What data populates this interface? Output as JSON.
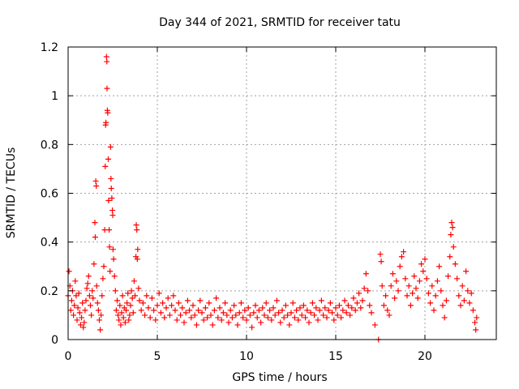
{
  "chart_data": {
    "type": "scatter",
    "title": "Day 344 of 2021, SRMTID for receiver tatu",
    "xlabel": "GPS time / hours",
    "ylabel": "SRMTID / TECUs",
    "xlim": [
      0,
      24
    ],
    "ylim": [
      0,
      1.2
    ],
    "xticks": [
      0,
      5,
      10,
      15,
      20
    ],
    "xtick_labels": [
      "0",
      "5",
      "10",
      "15",
      "20"
    ],
    "yticks": [
      0,
      0.2,
      0.4,
      0.6,
      0.8,
      1.0,
      1.2
    ],
    "ytick_labels": [
      "0",
      "0.2",
      "0.4",
      "0.6",
      "0.8",
      "1",
      "1.2"
    ],
    "grid": true,
    "marker": "plus",
    "series_color": "#ff0000",
    "series": [
      {
        "name": "SRMTID",
        "points": [
          [
            0.0,
            0.18
          ],
          [
            0.05,
            0.28
          ],
          [
            0.1,
            0.22
          ],
          [
            0.15,
            0.12
          ],
          [
            0.2,
            0.16
          ],
          [
            0.25,
            0.2
          ],
          [
            0.3,
            0.1
          ],
          [
            0.35,
            0.14
          ],
          [
            0.4,
            0.24
          ],
          [
            0.45,
            0.18
          ],
          [
            0.5,
            0.08
          ],
          [
            0.55,
            0.13
          ],
          [
            0.6,
            0.19
          ],
          [
            0.65,
            0.11
          ],
          [
            0.7,
            0.06
          ],
          [
            0.75,
            0.09
          ],
          [
            0.8,
            0.15
          ],
          [
            0.85,
            0.05
          ],
          [
            0.9,
            0.07
          ],
          [
            0.95,
            0.12
          ],
          [
            1.0,
            0.16
          ],
          [
            1.05,
            0.21
          ],
          [
            1.1,
            0.23
          ],
          [
            1.15,
            0.26
          ],
          [
            1.2,
            0.18
          ],
          [
            1.25,
            0.14
          ],
          [
            1.3,
            0.1
          ],
          [
            1.35,
            0.2
          ],
          [
            1.4,
            0.17
          ],
          [
            1.45,
            0.31
          ],
          [
            1.5,
            0.48
          ],
          [
            1.52,
            0.42
          ],
          [
            1.55,
            0.65
          ],
          [
            1.58,
            0.63
          ],
          [
            1.6,
            0.22
          ],
          [
            1.65,
            0.15
          ],
          [
            1.7,
            0.12
          ],
          [
            1.75,
            0.08
          ],
          [
            1.8,
            0.04
          ],
          [
            1.85,
            0.1
          ],
          [
            1.9,
            0.18
          ],
          [
            1.95,
            0.25
          ],
          [
            2.0,
            0.3
          ],
          [
            2.05,
            0.45
          ],
          [
            2.08,
            0.71
          ],
          [
            2.1,
            0.88
          ],
          [
            2.12,
            0.89
          ],
          [
            2.15,
            1.16
          ],
          [
            2.17,
            1.14
          ],
          [
            2.18,
            1.03
          ],
          [
            2.2,
            0.94
          ],
          [
            2.22,
            0.93
          ],
          [
            2.25,
            0.74
          ],
          [
            2.27,
            0.57
          ],
          [
            2.3,
            0.45
          ],
          [
            2.32,
            0.38
          ],
          [
            2.35,
            0.28
          ],
          [
            2.38,
            0.79
          ],
          [
            2.4,
            0.66
          ],
          [
            2.42,
            0.62
          ],
          [
            2.45,
            0.58
          ],
          [
            2.48,
            0.53
          ],
          [
            2.5,
            0.51
          ],
          [
            2.52,
            0.37
          ],
          [
            2.55,
            0.33
          ],
          [
            2.6,
            0.26
          ],
          [
            2.65,
            0.2
          ],
          [
            2.7,
            0.12
          ],
          [
            2.75,
            0.16
          ],
          [
            2.8,
            0.1
          ],
          [
            2.85,
            0.08
          ],
          [
            2.9,
            0.14
          ],
          [
            2.95,
            0.06
          ],
          [
            3.0,
            0.11
          ],
          [
            3.05,
            0.18
          ],
          [
            3.1,
            0.09
          ],
          [
            3.15,
            0.13
          ],
          [
            3.2,
            0.07
          ],
          [
            3.25,
            0.12
          ],
          [
            3.3,
            0.15
          ],
          [
            3.35,
            0.19
          ],
          [
            3.4,
            0.08
          ],
          [
            3.45,
            0.1
          ],
          [
            3.5,
            0.14
          ],
          [
            3.55,
            0.2
          ],
          [
            3.6,
            0.17
          ],
          [
            3.65,
            0.11
          ],
          [
            3.7,
            0.24
          ],
          [
            3.75,
            0.18
          ],
          [
            3.8,
            0.34
          ],
          [
            3.82,
            0.47
          ],
          [
            3.85,
            0.45
          ],
          [
            3.88,
            0.33
          ],
          [
            3.9,
            0.37
          ],
          [
            3.95,
            0.21
          ],
          [
            4.0,
            0.16
          ],
          [
            4.1,
            0.12
          ],
          [
            4.2,
            0.15
          ],
          [
            4.3,
            0.1
          ],
          [
            4.4,
            0.18
          ],
          [
            4.5,
            0.13
          ],
          [
            4.6,
            0.09
          ],
          [
            4.7,
            0.17
          ],
          [
            4.8,
            0.12
          ],
          [
            4.9,
            0.08
          ],
          [
            5.0,
            0.14
          ],
          [
            5.1,
            0.19
          ],
          [
            5.2,
            0.11
          ],
          [
            5.3,
            0.15
          ],
          [
            5.4,
            0.09
          ],
          [
            5.5,
            0.13
          ],
          [
            5.6,
            0.17
          ],
          [
            5.7,
            0.1
          ],
          [
            5.8,
            0.14
          ],
          [
            5.9,
            0.18
          ],
          [
            6.0,
            0.12
          ],
          [
            6.1,
            0.08
          ],
          [
            6.2,
            0.15
          ],
          [
            6.3,
            0.1
          ],
          [
            6.4,
            0.13
          ],
          [
            6.5,
            0.07
          ],
          [
            6.6,
            0.11
          ],
          [
            6.7,
            0.16
          ],
          [
            6.8,
            0.12
          ],
          [
            6.9,
            0.09
          ],
          [
            7.0,
            0.14
          ],
          [
            7.1,
            0.1
          ],
          [
            7.2,
            0.06
          ],
          [
            7.3,
            0.12
          ],
          [
            7.4,
            0.16
          ],
          [
            7.5,
            0.11
          ],
          [
            7.6,
            0.08
          ],
          [
            7.7,
            0.13
          ],
          [
            7.8,
            0.09
          ],
          [
            7.9,
            0.15
          ],
          [
            8.0,
            0.1
          ],
          [
            8.1,
            0.06
          ],
          [
            8.2,
            0.12
          ],
          [
            8.3,
            0.17
          ],
          [
            8.4,
            0.09
          ],
          [
            8.5,
            0.13
          ],
          [
            8.6,
            0.08
          ],
          [
            8.7,
            0.11
          ],
          [
            8.8,
            0.15
          ],
          [
            8.9,
            0.1
          ],
          [
            9.0,
            0.07
          ],
          [
            9.1,
            0.12
          ],
          [
            9.2,
            0.09
          ],
          [
            9.3,
            0.14
          ],
          [
            9.4,
            0.1
          ],
          [
            9.5,
            0.06
          ],
          [
            9.6,
            0.11
          ],
          [
            9.7,
            0.15
          ],
          [
            9.8,
            0.09
          ],
          [
            9.9,
            0.12
          ],
          [
            10.0,
            0.08
          ],
          [
            10.1,
            0.13
          ],
          [
            10.2,
            0.1
          ],
          [
            10.3,
            0.05
          ],
          [
            10.4,
            0.11
          ],
          [
            10.5,
            0.14
          ],
          [
            10.6,
            0.09
          ],
          [
            10.7,
            0.12
          ],
          [
            10.8,
            0.07
          ],
          [
            10.9,
            0.13
          ],
          [
            11.0,
            0.1
          ],
          [
            11.1,
            0.15
          ],
          [
            11.2,
            0.09
          ],
          [
            11.3,
            0.12
          ],
          [
            11.4,
            0.08
          ],
          [
            11.5,
            0.13
          ],
          [
            11.6,
            0.1
          ],
          [
            11.7,
            0.16
          ],
          [
            11.8,
            0.11
          ],
          [
            11.9,
            0.07
          ],
          [
            12.0,
            0.12
          ],
          [
            12.1,
            0.09
          ],
          [
            12.2,
            0.14
          ],
          [
            12.3,
            0.1
          ],
          [
            12.4,
            0.06
          ],
          [
            12.5,
            0.11
          ],
          [
            12.6,
            0.15
          ],
          [
            12.7,
            0.09
          ],
          [
            12.8,
            0.12
          ],
          [
            12.9,
            0.08
          ],
          [
            13.0,
            0.13
          ],
          [
            13.1,
            0.1
          ],
          [
            13.2,
            0.14
          ],
          [
            13.3,
            0.09
          ],
          [
            13.4,
            0.12
          ],
          [
            13.5,
            0.07
          ],
          [
            13.6,
            0.11
          ],
          [
            13.7,
            0.15
          ],
          [
            13.8,
            0.1
          ],
          [
            13.9,
            0.13
          ],
          [
            14.0,
            0.08
          ],
          [
            14.1,
            0.12
          ],
          [
            14.2,
            0.16
          ],
          [
            14.3,
            0.1
          ],
          [
            14.4,
            0.13
          ],
          [
            14.5,
            0.09
          ],
          [
            14.6,
            0.12
          ],
          [
            14.7,
            0.15
          ],
          [
            14.8,
            0.11
          ],
          [
            14.9,
            0.08
          ],
          [
            15.0,
            0.13
          ],
          [
            15.1,
            0.1
          ],
          [
            15.2,
            0.14
          ],
          [
            15.3,
            0.09
          ],
          [
            15.4,
            0.12
          ],
          [
            15.5,
            0.16
          ],
          [
            15.6,
            0.11
          ],
          [
            15.7,
            0.14
          ],
          [
            15.8,
            0.1
          ],
          [
            15.9,
            0.13
          ],
          [
            16.0,
            0.17
          ],
          [
            16.1,
            0.12
          ],
          [
            16.2,
            0.15
          ],
          [
            16.3,
            0.19
          ],
          [
            16.4,
            0.13
          ],
          [
            16.5,
            0.16
          ],
          [
            16.6,
            0.21
          ],
          [
            16.7,
            0.27
          ],
          [
            16.8,
            0.2
          ],
          [
            16.9,
            0.14
          ],
          [
            17.0,
            0.11
          ],
          [
            17.2,
            0.06
          ],
          [
            17.4,
            0.0
          ],
          [
            17.5,
            0.35
          ],
          [
            17.55,
            0.32
          ],
          [
            17.6,
            0.22
          ],
          [
            17.7,
            0.14
          ],
          [
            17.8,
            0.18
          ],
          [
            17.9,
            0.12
          ],
          [
            18.0,
            0.1
          ],
          [
            18.1,
            0.22
          ],
          [
            18.2,
            0.27
          ],
          [
            18.3,
            0.17
          ],
          [
            18.4,
            0.24
          ],
          [
            18.5,
            0.2
          ],
          [
            18.6,
            0.3
          ],
          [
            18.7,
            0.34
          ],
          [
            18.8,
            0.36
          ],
          [
            18.9,
            0.25
          ],
          [
            19.0,
            0.18
          ],
          [
            19.1,
            0.22
          ],
          [
            19.2,
            0.14
          ],
          [
            19.3,
            0.19
          ],
          [
            19.4,
            0.26
          ],
          [
            19.5,
            0.21
          ],
          [
            19.6,
            0.17
          ],
          [
            19.7,
            0.24
          ],
          [
            19.8,
            0.31
          ],
          [
            19.9,
            0.28
          ],
          [
            20.0,
            0.33
          ],
          [
            20.1,
            0.25
          ],
          [
            20.2,
            0.19
          ],
          [
            20.3,
            0.15
          ],
          [
            20.4,
            0.22
          ],
          [
            20.5,
            0.12
          ],
          [
            20.6,
            0.18
          ],
          [
            20.7,
            0.24
          ],
          [
            20.8,
            0.3
          ],
          [
            20.9,
            0.2
          ],
          [
            21.0,
            0.14
          ],
          [
            21.1,
            0.09
          ],
          [
            21.2,
            0.16
          ],
          [
            21.3,
            0.26
          ],
          [
            21.4,
            0.34
          ],
          [
            21.45,
            0.43
          ],
          [
            21.5,
            0.48
          ],
          [
            21.55,
            0.46
          ],
          [
            21.6,
            0.38
          ],
          [
            21.7,
            0.31
          ],
          [
            21.8,
            0.25
          ],
          [
            21.9,
            0.18
          ],
          [
            22.0,
            0.14
          ],
          [
            22.1,
            0.22
          ],
          [
            22.2,
            0.16
          ],
          [
            22.3,
            0.28
          ],
          [
            22.4,
            0.2
          ],
          [
            22.5,
            0.15
          ],
          [
            22.6,
            0.19
          ],
          [
            22.7,
            0.12
          ],
          [
            22.8,
            0.07
          ],
          [
            22.85,
            0.04
          ],
          [
            22.9,
            0.09
          ]
        ]
      }
    ]
  }
}
